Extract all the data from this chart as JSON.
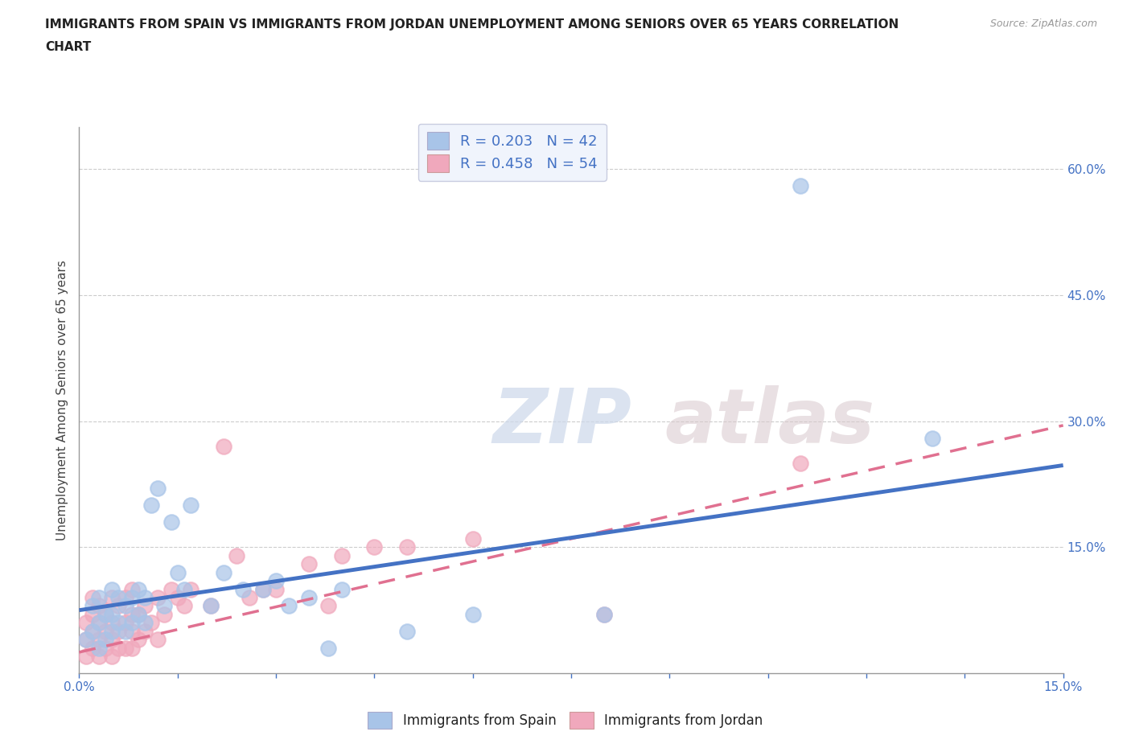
{
  "title_line1": "IMMIGRANTS FROM SPAIN VS IMMIGRANTS FROM JORDAN UNEMPLOYMENT AMONG SENIORS OVER 65 YEARS CORRELATION",
  "title_line2": "CHART",
  "ylabel": "Unemployment Among Seniors over 65 years",
  "source_text": "Source: ZipAtlas.com",
  "watermark_zip": "ZIP",
  "watermark_atlas": "atlas",
  "xlim": [
    0.0,
    0.15
  ],
  "ylim": [
    0.0,
    0.65
  ],
  "xticks": [
    0.0,
    0.015,
    0.03,
    0.045,
    0.06,
    0.075,
    0.09,
    0.105,
    0.12,
    0.135,
    0.15
  ],
  "ytick_positions": [
    0.0,
    0.15,
    0.3,
    0.45,
    0.6
  ],
  "right_ytick_labels": [
    "",
    "15.0%",
    "30.0%",
    "45.0%",
    "60.0%"
  ],
  "bottom_xtick_labels": [
    "0.0%",
    "",
    "",
    "",
    "",
    "",
    "",
    "",
    "",
    "",
    "15.0%"
  ],
  "gridline_y": [
    0.15,
    0.3,
    0.45,
    0.6
  ],
  "spain_color": "#a8c4e8",
  "jordan_color": "#f0a8bc",
  "spain_edge_color": "#a8c4e8",
  "jordan_edge_color": "#f0a8bc",
  "spain_line_color": "#4472c4",
  "jordan_line_color": "#e07090",
  "spain_R": 0.203,
  "spain_N": 42,
  "jordan_R": 0.458,
  "jordan_N": 54,
  "spain_scatter_x": [
    0.001,
    0.002,
    0.002,
    0.003,
    0.003,
    0.003,
    0.004,
    0.004,
    0.005,
    0.005,
    0.005,
    0.006,
    0.006,
    0.007,
    0.007,
    0.008,
    0.008,
    0.009,
    0.009,
    0.01,
    0.01,
    0.011,
    0.012,
    0.013,
    0.014,
    0.015,
    0.016,
    0.017,
    0.02,
    0.022,
    0.025,
    0.028,
    0.03,
    0.032,
    0.035,
    0.038,
    0.04,
    0.05,
    0.06,
    0.08,
    0.11,
    0.13
  ],
  "spain_scatter_y": [
    0.04,
    0.05,
    0.08,
    0.03,
    0.06,
    0.09,
    0.04,
    0.07,
    0.05,
    0.07,
    0.1,
    0.06,
    0.09,
    0.05,
    0.08,
    0.06,
    0.09,
    0.07,
    0.1,
    0.06,
    0.09,
    0.2,
    0.22,
    0.08,
    0.18,
    0.12,
    0.1,
    0.2,
    0.08,
    0.12,
    0.1,
    0.1,
    0.11,
    0.08,
    0.09,
    0.03,
    0.1,
    0.05,
    0.07,
    0.07,
    0.58,
    0.28
  ],
  "jordan_scatter_x": [
    0.001,
    0.001,
    0.001,
    0.002,
    0.002,
    0.002,
    0.002,
    0.003,
    0.003,
    0.003,
    0.003,
    0.004,
    0.004,
    0.004,
    0.005,
    0.005,
    0.005,
    0.005,
    0.006,
    0.006,
    0.006,
    0.007,
    0.007,
    0.007,
    0.008,
    0.008,
    0.008,
    0.008,
    0.009,
    0.009,
    0.01,
    0.01,
    0.011,
    0.012,
    0.012,
    0.013,
    0.014,
    0.015,
    0.016,
    0.017,
    0.02,
    0.022,
    0.024,
    0.026,
    0.028,
    0.03,
    0.035,
    0.038,
    0.04,
    0.045,
    0.05,
    0.06,
    0.08,
    0.11
  ],
  "jordan_scatter_y": [
    0.02,
    0.04,
    0.06,
    0.03,
    0.05,
    0.07,
    0.09,
    0.02,
    0.04,
    0.06,
    0.08,
    0.03,
    0.05,
    0.07,
    0.02,
    0.04,
    0.06,
    0.09,
    0.03,
    0.05,
    0.08,
    0.03,
    0.06,
    0.09,
    0.03,
    0.05,
    0.07,
    0.1,
    0.04,
    0.07,
    0.05,
    0.08,
    0.06,
    0.09,
    0.04,
    0.07,
    0.1,
    0.09,
    0.08,
    0.1,
    0.08,
    0.27,
    0.14,
    0.09,
    0.1,
    0.1,
    0.13,
    0.08,
    0.14,
    0.15,
    0.15,
    0.16,
    0.07,
    0.25
  ],
  "legend_box_color": "#f0f4fc",
  "legend_border_color": "#c8cce0",
  "title_color": "#222222",
  "axis_label_color": "#444444",
  "tick_color": "#4472c4",
  "gridline_color": "#cccccc",
  "spine_color": "#999999",
  "scatter_size": 180,
  "scatter_lw": 1.5
}
